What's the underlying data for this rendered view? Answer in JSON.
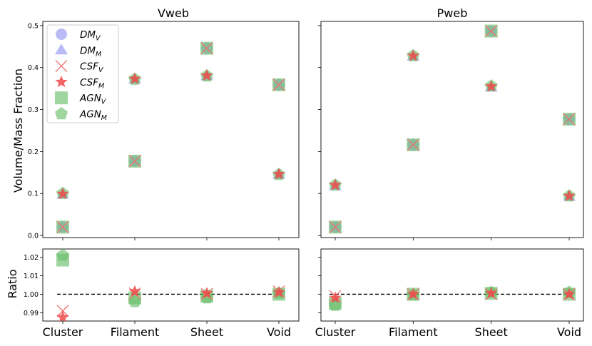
{
  "ylabel_top": "Volume/Mass Fraction",
  "ylabel_bottom": "Ratio",
  "categories": [
    "Cluster",
    "Filament",
    "Sheet",
    "Void"
  ],
  "legend": [
    {
      "base": "DM",
      "sub": "V",
      "marker": "circle",
      "color": "#8c8cf0"
    },
    {
      "base": "DM",
      "sub": "M",
      "marker": "triangle",
      "color": "#8c8cf0"
    },
    {
      "base": "CSF",
      "sub": "V",
      "marker": "x",
      "color": "#f26d6d"
    },
    {
      "base": "CSF",
      "sub": "M",
      "marker": "star",
      "color": "#ef4a4a"
    },
    {
      "base": "AGN",
      "sub": "V",
      "marker": "square",
      "color": "#6bbf6b"
    },
    {
      "base": "AGN",
      "sub": "M",
      "marker": "pentagon",
      "color": "#6bbf6b"
    }
  ],
  "chart_data": [
    {
      "type": "scatter",
      "title": "Vweb",
      "xlabel": "",
      "ylabel": "Volume/Mass Fraction",
      "categories": [
        "Cluster",
        "Filament",
        "Sheet",
        "Void"
      ],
      "ylim": [
        -0.005,
        0.51
      ],
      "yticks": [
        0.0,
        0.1,
        0.2,
        0.3,
        0.4,
        0.5
      ],
      "series": [
        {
          "name": "DM_V",
          "values": [
            0.02,
            0.177,
            0.446,
            0.359
          ]
        },
        {
          "name": "DM_M",
          "values": [
            0.098,
            0.372,
            0.38,
            0.145
          ]
        },
        {
          "name": "CSF_V",
          "values": [
            0.02,
            0.177,
            0.446,
            0.359
          ]
        },
        {
          "name": "CSF_M",
          "values": [
            0.099,
            0.373,
            0.381,
            0.146
          ]
        },
        {
          "name": "AGN_V",
          "values": [
            0.02,
            0.177,
            0.446,
            0.359
          ]
        },
        {
          "name": "AGN_M",
          "values": [
            0.1,
            0.372,
            0.38,
            0.145
          ]
        }
      ]
    },
    {
      "type": "scatter",
      "title": "Pweb",
      "xlabel": "",
      "ylabel": "",
      "categories": [
        "Cluster",
        "Filament",
        "Sheet",
        "Void"
      ],
      "ylim": [
        -0.005,
        0.51
      ],
      "yticks": [
        0.0,
        0.1,
        0.2,
        0.3,
        0.4,
        0.5
      ],
      "series": [
        {
          "name": "DM_V",
          "values": [
            0.02,
            0.216,
            0.487,
            0.277
          ]
        },
        {
          "name": "DM_M",
          "values": [
            0.118,
            0.427,
            0.353,
            0.093
          ]
        },
        {
          "name": "CSF_V",
          "values": [
            0.02,
            0.216,
            0.487,
            0.277
          ]
        },
        {
          "name": "CSF_M",
          "values": [
            0.12,
            0.428,
            0.355,
            0.094
          ]
        },
        {
          "name": "AGN_V",
          "values": [
            0.02,
            0.216,
            0.487,
            0.277
          ]
        },
        {
          "name": "AGN_M",
          "values": [
            0.12,
            0.428,
            0.356,
            0.094
          ]
        }
      ]
    },
    {
      "type": "scatter",
      "title": "",
      "xlabel": "",
      "ylabel": "Ratio",
      "categories": [
        "Cluster",
        "Filament",
        "Sheet",
        "Void"
      ],
      "ylim": [
        0.9855,
        1.0245
      ],
      "yticks": [
        0.99,
        1.0,
        1.01,
        1.02
      ],
      "reference_line": 1.0,
      "series": [
        {
          "name": "CSF_V",
          "values": [
            0.991,
            1.0005,
            1.0002,
            1.0015
          ]
        },
        {
          "name": "CSF_M",
          "values": [
            0.9875,
            1.0015,
            1.0005,
            1.001
          ]
        },
        {
          "name": "AGN_V",
          "values": [
            1.0185,
            0.998,
            0.999,
            1.0
          ]
        },
        {
          "name": "AGN_M",
          "values": [
            1.021,
            0.996,
            0.998,
            1.0005
          ]
        }
      ]
    },
    {
      "type": "scatter",
      "title": "",
      "xlabel": "",
      "ylabel": "",
      "categories": [
        "Cluster",
        "Filament",
        "Sheet",
        "Void"
      ],
      "ylim": [
        0.9855,
        1.0245
      ],
      "yticks": [
        0.99,
        1.0,
        1.01,
        1.02
      ],
      "reference_line": 1.0,
      "series": [
        {
          "name": "CSF_V",
          "values": [
            0.999,
            1.0,
            1.0,
            1.0
          ]
        },
        {
          "name": "CSF_M",
          "values": [
            0.998,
            1.0,
            1.0005,
            1.0
          ]
        },
        {
          "name": "AGN_V",
          "values": [
            0.995,
            1.0,
            1.0005,
            1.0
          ]
        },
        {
          "name": "AGN_M",
          "values": [
            0.994,
            0.9995,
            1.001,
            1.001
          ]
        }
      ]
    }
  ]
}
